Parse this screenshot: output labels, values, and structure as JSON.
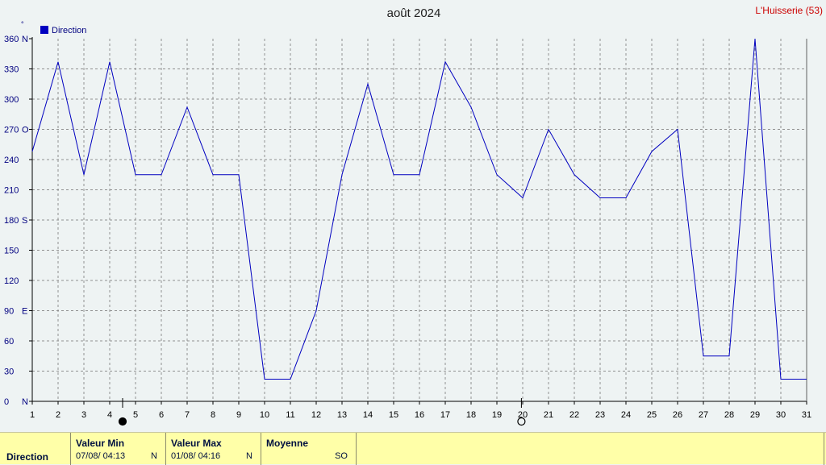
{
  "chart_data": {
    "type": "line",
    "title": "août 2024",
    "station": "L'Huisserie (53)",
    "unit_label": "°",
    "legend": [
      {
        "name": "Direction",
        "color": "#0000c0"
      }
    ],
    "legend_position": "top-left",
    "grid": true,
    "x": [
      1,
      2,
      3,
      4,
      5,
      6,
      7,
      8,
      9,
      10,
      11,
      12,
      13,
      14,
      15,
      16,
      17,
      18,
      19,
      20,
      21,
      22,
      23,
      24,
      25,
      26,
      27,
      28,
      29,
      30,
      31
    ],
    "xlim": [
      1,
      31
    ],
    "ylim": [
      0,
      360
    ],
    "yticks": [
      {
        "value": 0,
        "label": "0",
        "dir": "N"
      },
      {
        "value": 30,
        "label": "30",
        "dir": ""
      },
      {
        "value": 60,
        "label": "60",
        "dir": ""
      },
      {
        "value": 90,
        "label": "90",
        "dir": "E"
      },
      {
        "value": 120,
        "label": "120",
        "dir": ""
      },
      {
        "value": 150,
        "label": "150",
        "dir": ""
      },
      {
        "value": 180,
        "label": "180",
        "dir": "S"
      },
      {
        "value": 210,
        "label": "210",
        "dir": ""
      },
      {
        "value": 240,
        "label": "240",
        "dir": ""
      },
      {
        "value": 270,
        "label": "270",
        "dir": "O"
      },
      {
        "value": 300,
        "label": "300",
        "dir": ""
      },
      {
        "value": 330,
        "label": "330",
        "dir": ""
      },
      {
        "value": 360,
        "label": "360",
        "dir": "N"
      }
    ],
    "series": [
      {
        "name": "Direction",
        "color": "#0000c0",
        "values": [
          248,
          337,
          225,
          337,
          225,
          225,
          292,
          225,
          225,
          22,
          22,
          90,
          225,
          315,
          225,
          225,
          337,
          292,
          225,
          202,
          270,
          225,
          202,
          202,
          248,
          270,
          45,
          45,
          360,
          22,
          22
        ]
      }
    ],
    "moon_phases": [
      {
        "day": 4.5,
        "phase": "new-moon-icon"
      },
      {
        "day": 19.95,
        "phase": "full-moon-icon"
      }
    ]
  },
  "stats": {
    "row_label": "Direction",
    "min": {
      "header": "Valeur Min",
      "value": "07/08/  04:13",
      "dir": "N"
    },
    "max": {
      "header": "Valeur Max",
      "value": "01/08/  04:16",
      "dir": "N"
    },
    "avg": {
      "header": "Moyenne",
      "value": "SO"
    }
  }
}
